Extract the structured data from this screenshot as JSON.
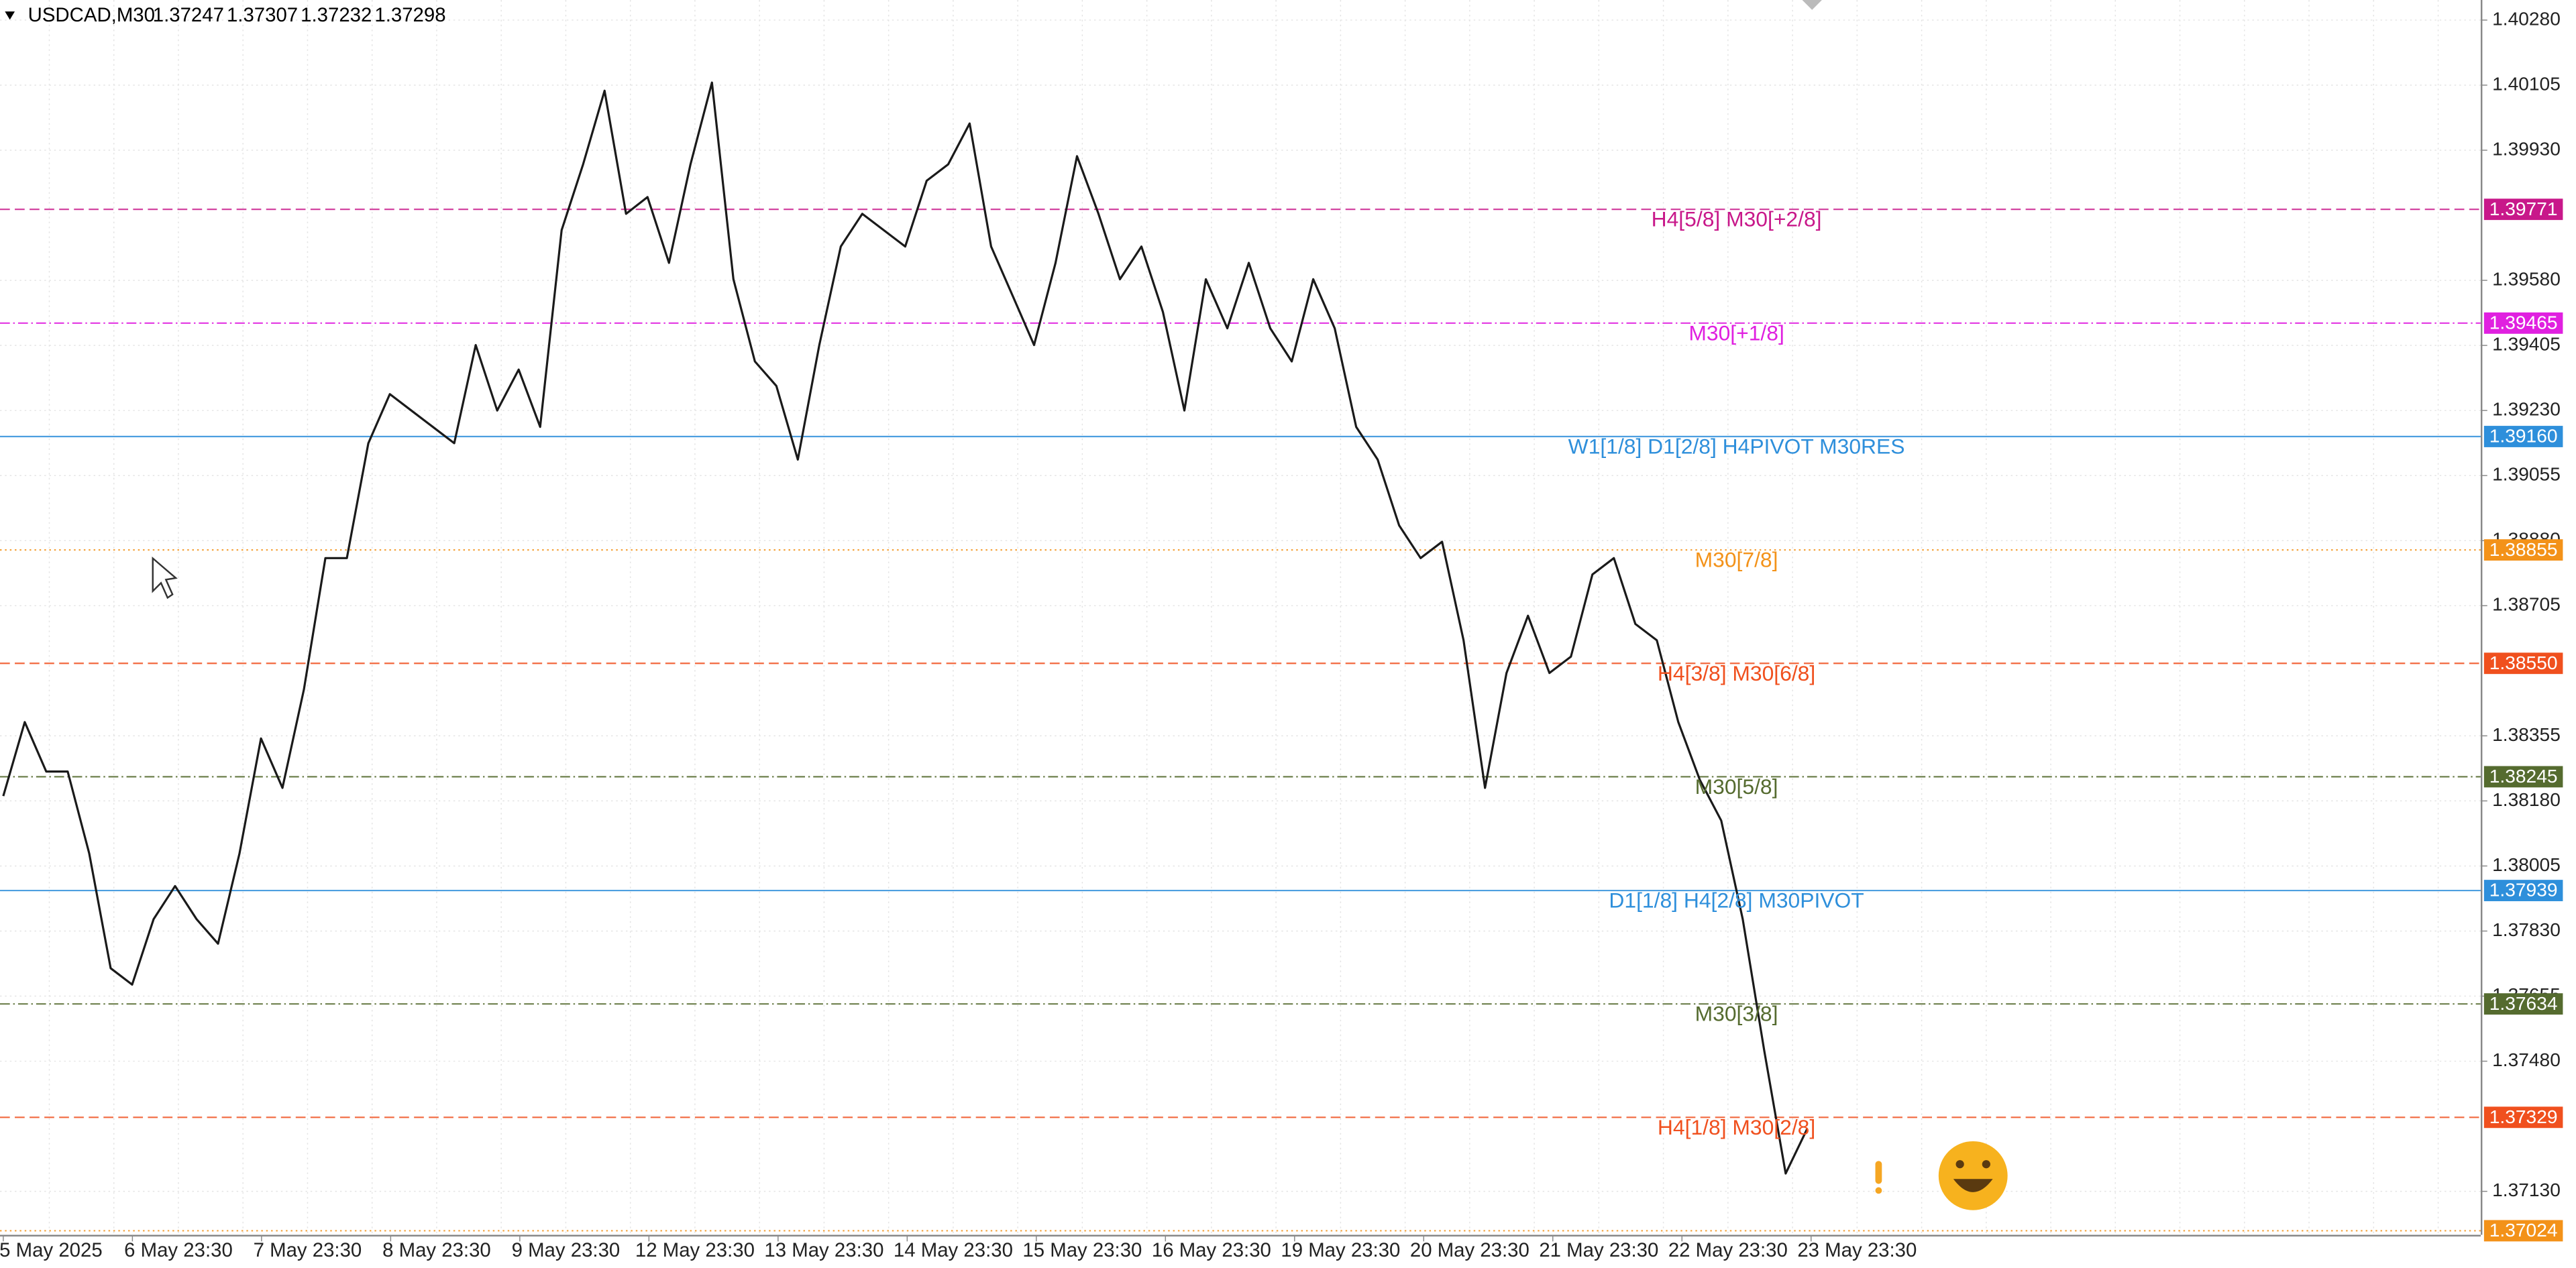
{
  "chart_data": {
    "type": "line",
    "symbol": "USDCAD,M30",
    "ohlc": [
      1.37247,
      1.37307,
      1.37232,
      1.37298
    ],
    "series": [
      {
        "color": "#1a1a1a",
        "values": [
          1.38193,
          1.38392,
          1.38259,
          1.38259,
          1.38039,
          1.3773,
          1.37686,
          1.37862,
          1.37951,
          1.37862,
          1.37796,
          1.38039,
          1.38348,
          1.38215,
          1.3848,
          1.38833,
          1.38833,
          1.39142,
          1.39274,
          1.3923,
          1.39186,
          1.39142,
          1.39406,
          1.3923,
          1.3934,
          1.39186,
          1.39715,
          1.39892,
          1.4009,
          1.39759,
          1.39804,
          1.39627,
          1.39892,
          1.40112,
          1.39583,
          1.39362,
          1.39296,
          1.39098,
          1.39406,
          1.39671,
          1.39759,
          1.39715,
          1.39671,
          1.39848,
          1.39892,
          1.40002,
          1.39671,
          1.39539,
          1.39406,
          1.39627,
          1.39914,
          1.39759,
          1.39583,
          1.39671,
          1.39495,
          1.3923,
          1.39583,
          1.39451,
          1.39627,
          1.39451,
          1.39362,
          1.39583,
          1.39451,
          1.39186,
          1.39098,
          1.38921,
          1.38833,
          1.38877,
          1.38612,
          1.38215,
          1.38524,
          1.38678,
          1.38524,
          1.38568,
          1.38789,
          1.38833,
          1.38656,
          1.38612,
          1.38392,
          1.38237,
          1.38127,
          1.37862,
          1.37509,
          1.37178,
          1.37298
        ]
      }
    ],
    "x_labels": [
      "5 May 2025",
      "6 May 23:30",
      "7 May 23:30",
      "8 May 23:30",
      "9 May 23:30",
      "12 May 23:30",
      "13 May 23:30",
      "14 May 23:30",
      "15 May 23:30",
      "16 May 23:30",
      "19 May 23:30",
      "20 May 23:30",
      "21 May 23:30",
      "22 May 23:30",
      "23 May 23:30"
    ],
    "ylim": [
      1.37013,
      1.40334
    ],
    "yticks": [
      {
        "value": 1.4028,
        "label": "1.40280"
      },
      1.40105,
      {
        "value": 1.3993,
        "label": "1.39930"
      },
      {
        "value": 1.3958,
        "label": "1.39580"
      },
      1.39405,
      {
        "value": 1.3923,
        "label": "1.39230"
      },
      1.39055,
      {
        "value": 1.3888,
        "label": "1.38880"
      },
      1.38705,
      1.38355,
      {
        "value": 1.3818,
        "label": "1.38180"
      },
      1.38005,
      {
        "value": 1.3783,
        "label": "1.37830"
      },
      1.37655,
      {
        "value": 1.3748,
        "label": "1.37480"
      },
      {
        "value": 1.3713,
        "label": "1.37130"
      }
    ],
    "grid": true,
    "levels": [
      {
        "name": "H4[5/8] M30[+2/8]",
        "value": 1.39771,
        "color": "#c8188a",
        "style": "dashed"
      },
      {
        "name": "M30[+1/8]",
        "value": 1.39465,
        "color": "#e020e0",
        "style": "dashdot"
      },
      {
        "name": "W1[1/8] D1[2/8] H4PIVOT M30RES",
        "value": 1.3916,
        "value_label": "1.39160",
        "color": "#2e8fdb",
        "style": "solid"
      },
      {
        "name": "M30[7/8]",
        "value": 1.38855,
        "color": "#f39219",
        "style": "dotted"
      },
      {
        "name": "H4[3/8] M30[6/8]",
        "value": 1.3855,
        "value_label": "1.38550",
        "color": "#f0501e",
        "style": "dashed"
      },
      {
        "name": "M30[5/8]",
        "value": 1.38245,
        "color": "#556b2f",
        "style": "dashdot"
      },
      {
        "name": "D1[1/8] H4[2/8] M30PIVOT",
        "value": 1.37939,
        "color": "#2e8fdb",
        "style": "solid"
      },
      {
        "name": "M30[3/8]",
        "value": 1.37634,
        "color": "#556b2f",
        "style": "dashdot"
      },
      {
        "name": "H4[1/8] M30[2/8]",
        "value": 1.37329,
        "color": "#f0501e",
        "style": "dashed"
      },
      {
        "value": 1.37024,
        "color": "#f39219",
        "style": "dotted"
      }
    ]
  }
}
